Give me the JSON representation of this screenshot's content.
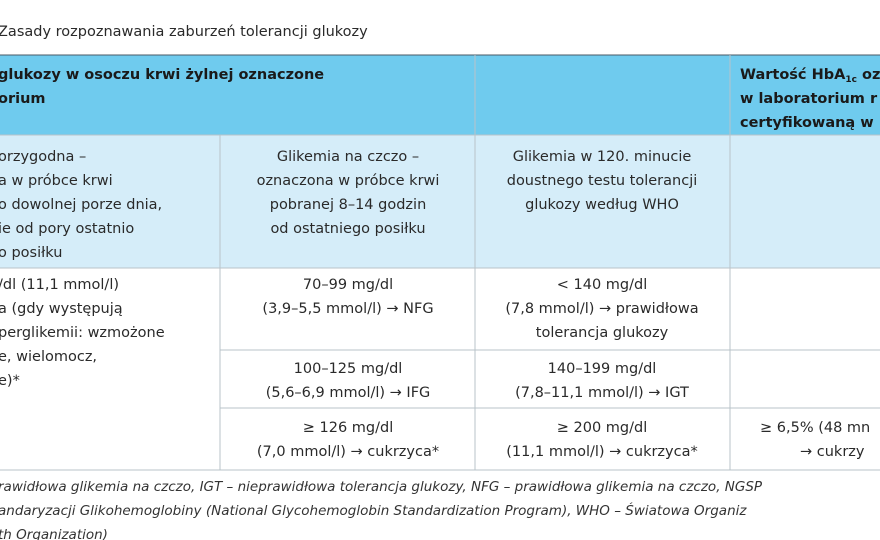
{
  "title": "Zasady rozpoznawania zaburzeń tolerancji glukozy",
  "table": {
    "header": {
      "left": [
        "glukozy w osoczu krwi żylnej oznaczone",
        "orium"
      ],
      "right_first": {
        "before": "Wartość HbA",
        "sub": "1c",
        "after": " oz"
      },
      "right": [
        "w laboratorium r",
        "certyfikowaną w"
      ]
    },
    "subheader": [
      [
        "orzygodna –",
        "a w próbce krwi",
        "o dowolnej porze dnia,",
        "ie od pory ostatnio",
        "o posiłku"
      ],
      [
        "Glikemia na czczo –",
        "oznaczona w próbce krwi",
        "pobranej 8–14 godzin",
        "od ostatniego posiłku"
      ],
      [
        "Glikemia w 120. minucie",
        "doustnego testu tolerancji",
        "glukozy według WHO"
      ]
    ],
    "first_column": [
      "/dl (11,1 mmol/l)",
      "a (gdy występują",
      "perglikemii: wzmożone",
      "e, wielomocz,",
      "e)*"
    ],
    "rows": [
      [
        [
          "70–99 mg/dl",
          "(3,9–5,5 mmol/l) → NFG"
        ],
        [
          "< 140 mg/dl",
          "(7,8 mmol/l) → prawidłowa",
          "tolerancja glukozy"
        ]
      ],
      [
        [
          "100–125 mg/dl",
          "(5,6–6,9 mmol/l) → IFG"
        ],
        [
          "140–199 mg/dl",
          "(7,8–11,1 mmol/l) → IGT"
        ]
      ],
      [
        [
          "≥ 126 mg/dl",
          "(7,0 mmol/l) → cukrzyca*"
        ],
        [
          "≥ 200 mg/dl",
          "(11,1 mmol/l) → cukrzyca*"
        ],
        [
          "≥ 6,5% (48 mn",
          "→ cukrzy"
        ]
      ]
    ]
  },
  "footnote": [
    "rawidłowa glikemia na czczo, IGT – nieprawidłowa tolerancja glukozy, NFG – prawidłowa glikemia na czczo, NGSP",
    "andaryzacji Glikohemoglobiny (National Glycohemoglobin Standardization Program), WHO – Światowa Organiz",
    "th Organization)"
  ]
}
